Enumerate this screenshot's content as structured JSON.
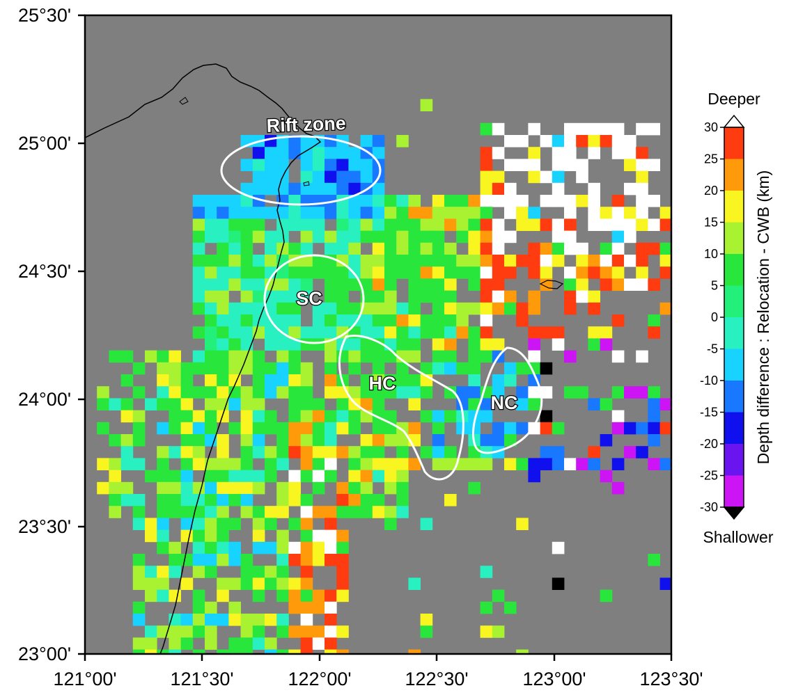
{
  "map": {
    "lat_labels": [
      "25°30'",
      "25°00'",
      "24°30'",
      "24°00'",
      "23°30'",
      "23°00'"
    ],
    "lon_labels": [
      "121°00'",
      "121°30'",
      "122°00'",
      "122°30'",
      "123°00'",
      "123°30'"
    ],
    "lat_range": [
      23.0,
      25.5
    ],
    "lon_range": [
      121.0,
      123.5
    ],
    "background_color": "#7f7f7f",
    "region_labels": {
      "rift": "Rift zone",
      "sc": "SC",
      "hc": "HC",
      "nc": "NC"
    }
  },
  "colorbar": {
    "top_label": "Deeper",
    "bottom_label": "Shallower",
    "title": "Depth difference : Relocation - CWB (km)",
    "ticks": [
      "30",
      "25",
      "20",
      "15",
      "10",
      "5",
      "0",
      "-5",
      "-10",
      "-15",
      "-20",
      "-25",
      "-30"
    ],
    "colors": [
      "#ff3b10",
      "#ff9a0a",
      "#f8f520",
      "#a8f232",
      "#28e63c",
      "#22f07a",
      "#28f0c0",
      "#18d2ff",
      "#1878ff",
      "#1010ee",
      "#6a14f0",
      "#cc14f5"
    ],
    "over_color": "#ffffff",
    "under_color": "#000000"
  }
}
